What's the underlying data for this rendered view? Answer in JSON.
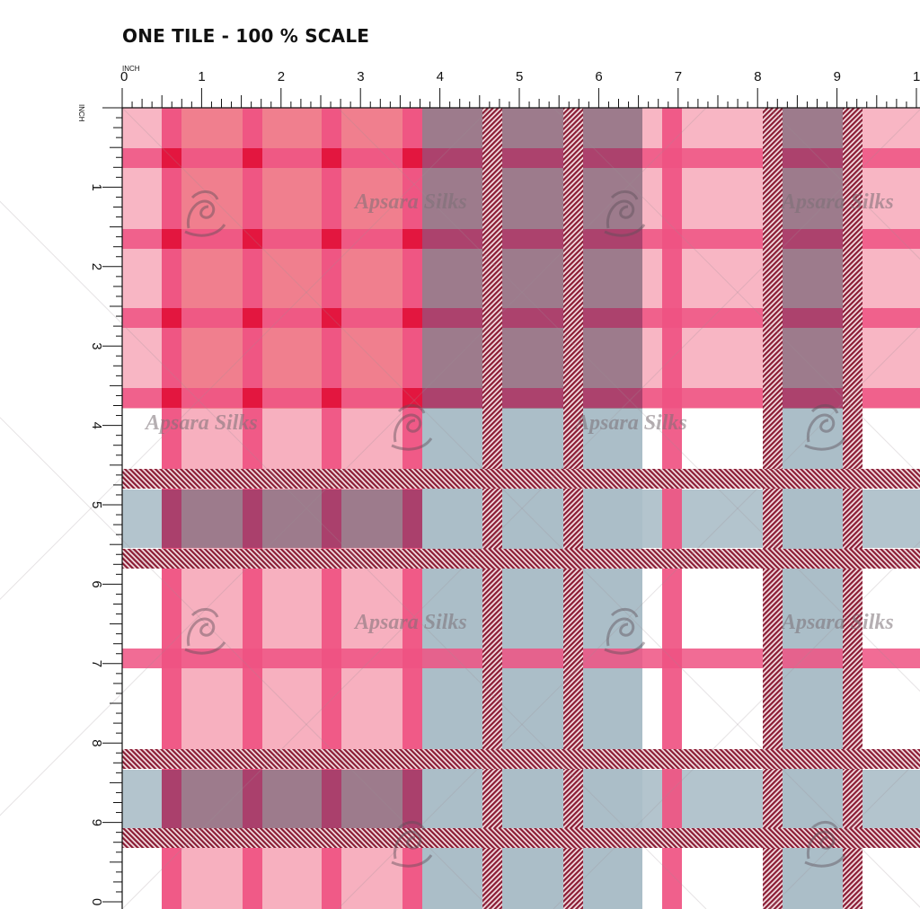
{
  "header": {
    "title": "ONE TILE - 100 % SCALE"
  },
  "ruler": {
    "unit": "INCH",
    "top_labels": [
      "0",
      "1",
      "2",
      "3",
      "4",
      "5",
      "6",
      "7",
      "8",
      "9",
      "10"
    ],
    "left_labels": [
      "1",
      "2",
      "3",
      "4",
      "5",
      "6",
      "7",
      "8",
      "9",
      "0"
    ]
  },
  "watermark": {
    "text": "Apsara Silks"
  },
  "colors": {
    "background": "#ffffff",
    "pink_block": "#f7b0bf",
    "pink_stripe": "#ef5282",
    "red_cross": "#e3163f",
    "blue_block": "#abbec8",
    "maroon_stripe": "#8a1c34",
    "mauve_overlap": "#9d7b8c",
    "deep_overlap": "#9a3b66"
  }
}
